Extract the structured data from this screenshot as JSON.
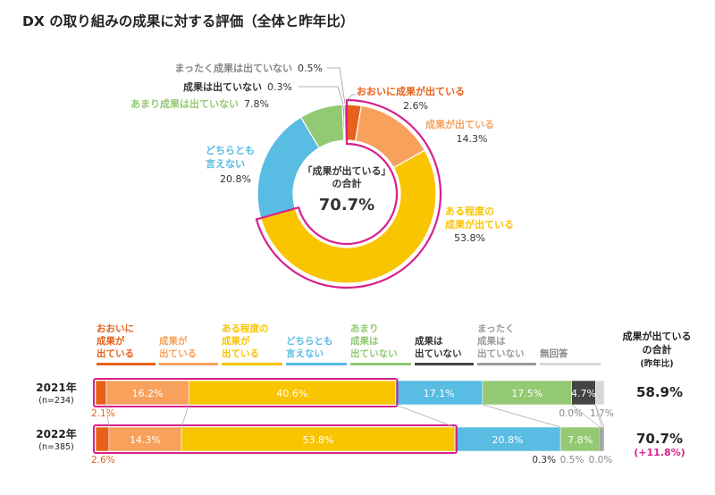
{
  "title": "DX の取り組みの成果に対する評価（全体と昨年比）",
  "colors": {
    "great": "#e8611a",
    "some": "#f7a15c",
    "moderate": "#f9c400",
    "neutral": "#58bce3",
    "little": "#94c973",
    "none": "#444444",
    "notatall": "#9a9a9a",
    "noanswer": "#d6d6d6",
    "highlight": "#d6218c",
    "increase": "#d6218c"
  },
  "chart_data": [
    {
      "type": "pie",
      "title": "",
      "center_label": [
        "「成果が出ている」",
        "の合計"
      ],
      "center_value": "70.7%",
      "slices": [
        {
          "key": "great",
          "label": [
            "おおいに成果が出ている"
          ],
          "value": 2.6,
          "value_text": "2.6%"
        },
        {
          "key": "some",
          "label": [
            "成果が出ている"
          ],
          "value": 14.3,
          "value_text": "14.3%"
        },
        {
          "key": "moderate",
          "label": [
            "ある程度の",
            "成果が出ている"
          ],
          "value": 53.8,
          "value_text": "53.8%"
        },
        {
          "key": "neutral",
          "label": [
            "どちらとも",
            "言えない"
          ],
          "value": 20.8,
          "value_text": "20.8%"
        },
        {
          "key": "little",
          "label": [
            "あまり成果は出ていない"
          ],
          "value": 7.8,
          "value_text": "7.8%"
        },
        {
          "key": "none",
          "label": [
            "成果は出ていない"
          ],
          "value": 0.3,
          "value_text": "0.3%"
        },
        {
          "key": "notatall",
          "label": [
            "まったく成果は出ていない"
          ],
          "value": 0.5,
          "value_text": "0.5%"
        }
      ]
    },
    {
      "type": "bar",
      "stacked": true,
      "orientation": "horizontal",
      "legend": [
        {
          "key": "great",
          "lines": [
            "おおいに",
            "成果が",
            "出ている"
          ]
        },
        {
          "key": "some",
          "lines": [
            "成果が",
            "出ている"
          ]
        },
        {
          "key": "moderate",
          "lines": [
            "ある程度の",
            "成果が",
            "出ている"
          ]
        },
        {
          "key": "neutral",
          "lines": [
            "どちらとも",
            "言えない"
          ]
        },
        {
          "key": "little",
          "lines": [
            "あまり",
            "成果は",
            "出ていない"
          ]
        },
        {
          "key": "none",
          "lines": [
            "成果は",
            "出ていない"
          ]
        },
        {
          "key": "notatall",
          "lines": [
            "まったく",
            "成果は",
            "出ていない"
          ]
        },
        {
          "key": "noanswer",
          "lines": [
            "無回答"
          ]
        }
      ],
      "total_header": [
        "成果が出ている",
        "の合計",
        "(昨年比)"
      ],
      "rows": [
        {
          "year": "2021年",
          "n": "(n=234)",
          "total": "58.9%",
          "change": "",
          "segments": [
            {
              "key": "great",
              "value": 2.1,
              "text": "2.1%"
            },
            {
              "key": "some",
              "value": 16.2,
              "text": "16.2%"
            },
            {
              "key": "moderate",
              "value": 40.6,
              "text": "40.6%"
            },
            {
              "key": "neutral",
              "value": 17.1,
              "text": "17.1%"
            },
            {
              "key": "little",
              "value": 17.5,
              "text": "17.5%"
            },
            {
              "key": "none",
              "value": 4.7,
              "text": "4.7%"
            },
            {
              "key": "notatall",
              "value": 0.0,
              "text": "0.0%"
            },
            {
              "key": "noanswer",
              "value": 1.7,
              "text": "1.7%"
            }
          ]
        },
        {
          "year": "2022年",
          "n": "(n=385)",
          "total": "70.7%",
          "change": "(+11.8%)",
          "segments": [
            {
              "key": "great",
              "value": 2.6,
              "text": "2.6%"
            },
            {
              "key": "some",
              "value": 14.3,
              "text": "14.3%"
            },
            {
              "key": "moderate",
              "value": 53.8,
              "text": "53.8%"
            },
            {
              "key": "neutral",
              "value": 20.8,
              "text": "20.8%"
            },
            {
              "key": "little",
              "value": 7.8,
              "text": "7.8%"
            },
            {
              "key": "none",
              "value": 0.3,
              "text": "0.3%"
            },
            {
              "key": "notatall",
              "value": 0.5,
              "text": "0.5%"
            },
            {
              "key": "noanswer",
              "value": 0.0,
              "text": "0.0%"
            }
          ]
        }
      ]
    }
  ]
}
